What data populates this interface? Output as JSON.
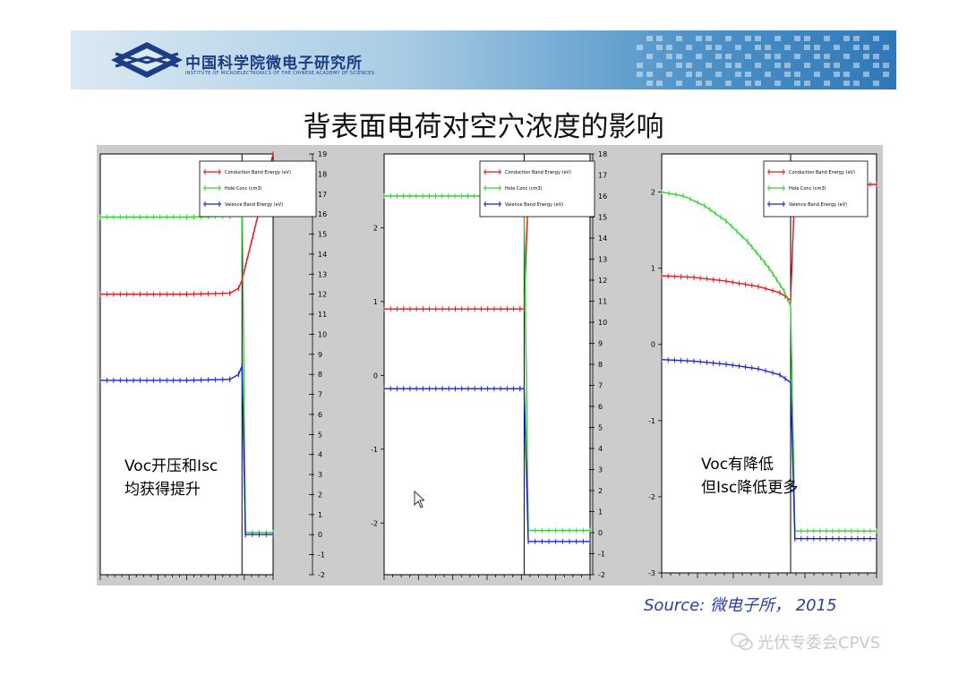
{
  "banner": {
    "org_cn": "中国科学院微电子研究所",
    "org_en": "INSTITUTE OF MICROELECTRONICS OF THE CHINESE ACADEMY OF SCIENCES",
    "logo_icon": "ime-cas-logo-icon"
  },
  "slide": {
    "title": "背表面电荷对空穴浓度的影响",
    "note_left": "Voc开压和Isc\n均获得提升",
    "note_right": "Voc有降低\n但Isc降低更多",
    "source": "Source: 微电子所， 2015",
    "watermark": "光伏专委会CPVS",
    "watermark_icon": "wechat-icon",
    "cursor_icon": "mouse-pointer-icon"
  },
  "colors": {
    "conduction": "#e8141c",
    "hole": "#32d232",
    "valence": "#1a22cc",
    "frame": "#000000",
    "figure_bg": "#cccccc"
  },
  "chart_data": [
    {
      "type": "line",
      "legend": [
        "Conduction Band Energy (eV)",
        "Hole Conc (cm3)",
        "Valence Band Energy (eV)"
      ],
      "legend_position": "top-right",
      "right_ylim": [
        -2,
        19
      ],
      "right_ticks": [
        "-2",
        "-1",
        "0",
        "1",
        "2",
        "3",
        "4",
        "5",
        "6",
        "7",
        "8",
        "9",
        "10",
        "11",
        "12",
        "13",
        "14",
        "15",
        "16",
        "17",
        "18",
        "19"
      ],
      "left_ylim": null,
      "left_ticks": [],
      "xlim": [
        0,
        1
      ],
      "interface_x": 0.82,
      "series": [
        {
          "name": "Conduction Band Energy (eV)",
          "side": "right",
          "x": [
            0.0,
            0.5,
            0.75,
            0.8,
            0.82,
            1.0
          ],
          "y": [
            12.0,
            12.0,
            12.05,
            12.3,
            12.7,
            19.0
          ]
        },
        {
          "name": "Hole Conc (cm3)",
          "side": "right",
          "x": [
            0.0,
            0.5,
            0.75,
            0.8,
            0.82,
            0.84,
            1.0
          ],
          "y": [
            15.85,
            15.85,
            15.9,
            16.3,
            17.5,
            0.1,
            0.1
          ]
        },
        {
          "name": "Valence Band Energy (eV)",
          "side": "right",
          "x": [
            0.0,
            0.5,
            0.75,
            0.8,
            0.82,
            0.84,
            1.0
          ],
          "y": [
            7.7,
            7.7,
            7.75,
            8.0,
            8.4,
            0.0,
            0.0
          ]
        }
      ]
    },
    {
      "type": "line",
      "legend": [
        "Conduction Band Energy (eV)",
        "Hole Conc (cm3)",
        "Valence Band Energy (eV)"
      ],
      "legend_position": "top-right",
      "left_ylim": [
        -2.7,
        3.0
      ],
      "left_ticks": [
        "-2",
        "-1",
        "0",
        "1",
        "2"
      ],
      "right_ylim": [
        -2,
        18
      ],
      "right_ticks": [
        "-2",
        "-1",
        "0",
        "1",
        "2",
        "3",
        "4",
        "5",
        "6",
        "7",
        "8",
        "9",
        "10",
        "11",
        "12",
        "13",
        "14",
        "15",
        "16",
        "17",
        "18"
      ],
      "xlim": [
        0,
        1
      ],
      "interface_x": 0.68,
      "series": [
        {
          "name": "Conduction Band Energy (eV)",
          "side": "left",
          "x": [
            0.0,
            0.66,
            0.68,
            0.7,
            1.0
          ],
          "y": [
            0.9,
            0.9,
            0.9,
            2.5,
            2.5
          ]
        },
        {
          "name": "Hole Conc (cm3)",
          "side": "right",
          "x": [
            0.0,
            0.5,
            0.66,
            0.68,
            0.7,
            1.0
          ],
          "y": [
            16.0,
            16.0,
            16.1,
            15.5,
            0.1,
            0.1
          ]
        },
        {
          "name": "Valence Band Energy (eV)",
          "side": "left",
          "x": [
            0.0,
            0.66,
            0.68,
            0.7,
            1.0
          ],
          "y": [
            -0.18,
            -0.18,
            -0.18,
            -2.25,
            -2.25
          ]
        }
      ]
    },
    {
      "type": "line",
      "legend": [
        "Conduction Band Energy (eV)",
        "Hole Conc (cm3)",
        "Valence Band Energy (eV)"
      ],
      "legend_position": "top-right",
      "left_ylim": [
        -3,
        2.5
      ],
      "left_ticks": [
        "-3",
        "-2",
        "-1",
        "0",
        "1",
        "2"
      ],
      "right_ylim": null,
      "right_ticks": [],
      "xlim": [
        0,
        1
      ],
      "interface_x": 0.6,
      "series": [
        {
          "name": "Conduction Band Energy (eV)",
          "side": "left",
          "x": [
            0.0,
            0.15,
            0.3,
            0.45,
            0.55,
            0.6,
            0.62,
            1.0
          ],
          "y": [
            0.9,
            0.88,
            0.83,
            0.76,
            0.68,
            0.58,
            2.1,
            2.1
          ]
        },
        {
          "name": "Hole Conc (cm3)",
          "side": "left",
          "x": [
            0.0,
            0.1,
            0.2,
            0.3,
            0.4,
            0.5,
            0.57,
            0.6,
            0.62,
            1.0
          ],
          "y": [
            2.0,
            1.95,
            1.82,
            1.62,
            1.35,
            1.0,
            0.7,
            0.5,
            -2.45,
            -2.45
          ]
        },
        {
          "name": "Valence Band Energy (eV)",
          "side": "left",
          "x": [
            0.0,
            0.15,
            0.3,
            0.45,
            0.55,
            0.6,
            0.62,
            1.0
          ],
          "y": [
            -0.2,
            -0.22,
            -0.26,
            -0.32,
            -0.4,
            -0.5,
            -2.55,
            -2.55
          ]
        }
      ]
    }
  ]
}
